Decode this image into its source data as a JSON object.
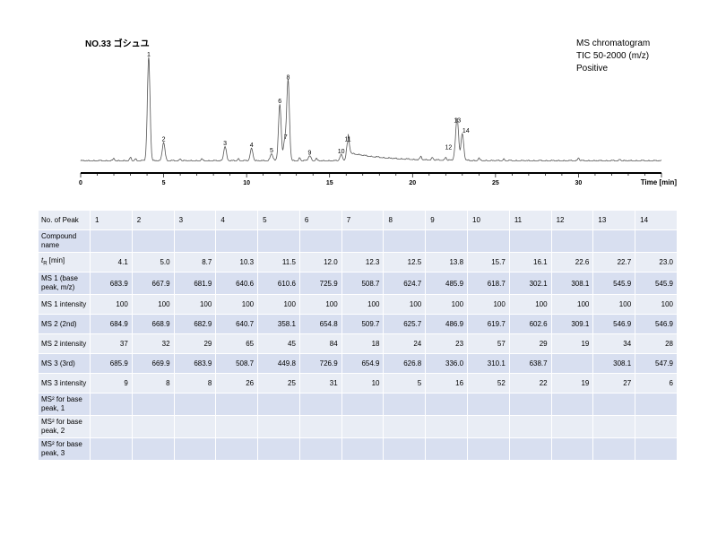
{
  "header": {
    "title": "NO.33 ゴシュユ",
    "info_lines": [
      "MS chromatogram",
      "TIC 50-2000 (m/z)",
      "Positive"
    ]
  },
  "chart_data": {
    "type": "line",
    "title": "NO.33 ゴシュユ",
    "xlabel": "Time [min]",
    "ylabel": "",
    "xlim": [
      0,
      35
    ],
    "x_ticks": [
      "0",
      "5",
      "10",
      "15",
      "20",
      "25",
      "30"
    ],
    "peaks": [
      {
        "label": "1",
        "x": 4.1,
        "y": 100
      },
      {
        "label": "2",
        "x": 5.0,
        "y": 18
      },
      {
        "label": "3",
        "x": 8.7,
        "y": 14
      },
      {
        "label": "4",
        "x": 10.3,
        "y": 12
      },
      {
        "label": "5",
        "x": 11.5,
        "y": 7
      },
      {
        "label": "6",
        "x": 12.0,
        "y": 55
      },
      {
        "label": "7",
        "x": 12.3,
        "y": 20
      },
      {
        "label": "8",
        "x": 12.5,
        "y": 78
      },
      {
        "label": "9",
        "x": 13.8,
        "y": 5
      },
      {
        "label": "10",
        "x": 15.7,
        "y": 6
      },
      {
        "label": "11",
        "x": 16.1,
        "y": 18
      },
      {
        "label": "12",
        "x": 22.6,
        "y": 10
      },
      {
        "label": "13",
        "x": 22.7,
        "y": 36
      },
      {
        "label": "14",
        "x": 23.0,
        "y": 26
      }
    ]
  },
  "table": {
    "header_label": "No. of Peak",
    "peak_numbers": [
      "1",
      "2",
      "3",
      "4",
      "5",
      "6",
      "7",
      "8",
      "9",
      "10",
      "11",
      "12",
      "13",
      "14"
    ],
    "rows": [
      {
        "label": "Compound name",
        "values": [
          "",
          "",
          "",
          "",
          "",
          "",
          "",
          "",
          "",
          "",
          "",
          "",
          "",
          ""
        ]
      },
      {
        "label_main": "t",
        "label_sub": "R",
        "label_rest": " [min]",
        "values": [
          "4.1",
          "5.0",
          "8.7",
          "10.3",
          "11.5",
          "12.0",
          "12.3",
          "12.5",
          "13.8",
          "15.7",
          "16.1",
          "22.6",
          "22.7",
          "23.0"
        ]
      },
      {
        "label": "MS 1 (base peak, m/z)",
        "values": [
          "683.9",
          "667.9",
          "681.9",
          "640.6",
          "610.6",
          "725.9",
          "508.7",
          "624.7",
          "485.9",
          "618.7",
          "302.1",
          "308.1",
          "545.9",
          "545.9"
        ]
      },
      {
        "label": "MS 1 intensity",
        "values": [
          "100",
          "100",
          "100",
          "100",
          "100",
          "100",
          "100",
          "100",
          "100",
          "100",
          "100",
          "100",
          "100",
          "100"
        ]
      },
      {
        "label": "MS 2 (2nd)",
        "values": [
          "684.9",
          "668.9",
          "682.9",
          "640.7",
          "358.1",
          "654.8",
          "509.7",
          "625.7",
          "486.9",
          "619.7",
          "602.6",
          "309.1",
          "546.9",
          "546.9"
        ]
      },
      {
        "label": "MS 2 intensity",
        "values": [
          "37",
          "32",
          "29",
          "65",
          "45",
          "84",
          "18",
          "24",
          "23",
          "57",
          "29",
          "19",
          "34",
          "28"
        ]
      },
      {
        "label": "MS 3 (3rd)",
        "values": [
          "685.9",
          "669.9",
          "683.9",
          "508.7",
          "449.8",
          "726.9",
          "654.9",
          "626.8",
          "336.0",
          "310.1",
          "638.7",
          "",
          "308.1",
          "547.9"
        ]
      },
      {
        "label": "MS 3 intensity",
        "values": [
          "9",
          "8",
          "8",
          "26",
          "25",
          "31",
          "10",
          "5",
          "16",
          "52",
          "22",
          "19",
          "27",
          "6"
        ]
      },
      {
        "label": "MS² for base peak, 1",
        "values": [
          "",
          "",
          "",
          "",
          "",
          "",
          "",
          "",
          "",
          "",
          "",
          "",
          "",
          ""
        ]
      },
      {
        "label": "MS² for base peak, 2",
        "values": [
          "",
          "",
          "",
          "",
          "",
          "",
          "",
          "",
          "",
          "",
          "",
          "",
          "",
          ""
        ]
      },
      {
        "label": "MS² for base peak, 3",
        "values": [
          "",
          "",
          "",
          "",
          "",
          "",
          "",
          "",
          "",
          "",
          "",
          "",
          "",
          ""
        ]
      }
    ]
  }
}
